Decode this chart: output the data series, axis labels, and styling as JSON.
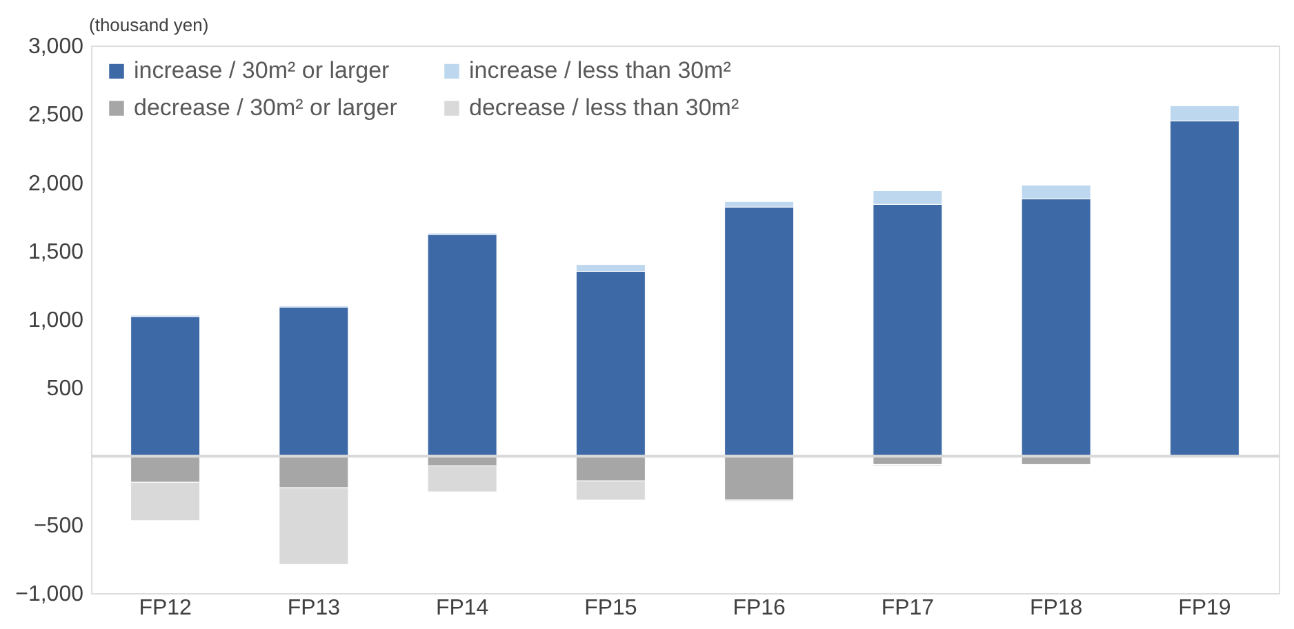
{
  "chart_data": {
    "type": "bar",
    "stacked": true,
    "ylabel": "(thousand yen)",
    "categories": [
      "FP12",
      "FP13",
      "FP14",
      "FP15",
      "FP16",
      "FP17",
      "FP18",
      "FP19"
    ],
    "series": [
      {
        "name": "increase / 30m² or larger",
        "color": "#3d69a6",
        "values": [
          1020,
          1090,
          1620,
          1350,
          1820,
          1840,
          1880,
          2450
        ]
      },
      {
        "name": "increase / less than 30m²",
        "color": "#bdd7ee",
        "values": [
          10,
          10,
          10,
          50,
          40,
          100,
          100,
          110
        ]
      },
      {
        "name": "decrease / 30m² or larger",
        "color": "#a6a6a6",
        "values": [
          -190,
          -230,
          -70,
          -180,
          -320,
          -60,
          -60,
          null
        ]
      },
      {
        "name": "decrease / less than 30m²",
        "color": "#d9d9d9",
        "values": [
          -280,
          -560,
          -190,
          -140,
          -10,
          -10,
          null,
          null
        ]
      }
    ],
    "ylim": [
      -1000,
      3000
    ],
    "yticks": [
      {
        "value": -1000,
        "label": "−1,000"
      },
      {
        "value": -500,
        "label": "−500"
      },
      500,
      {
        "value": 1000,
        "label": "1,000"
      },
      {
        "value": 1500,
        "label": "1,500"
      },
      {
        "value": 2000,
        "label": "2,000"
      },
      {
        "value": 2500,
        "label": "2,500"
      },
      {
        "value": 3000,
        "label": "3,000"
      }
    ],
    "ref_lines": [
      {
        "axis": "y",
        "value": 0,
        "color": "#d9d9d9"
      }
    ],
    "grid": false,
    "legend": "top left"
  }
}
